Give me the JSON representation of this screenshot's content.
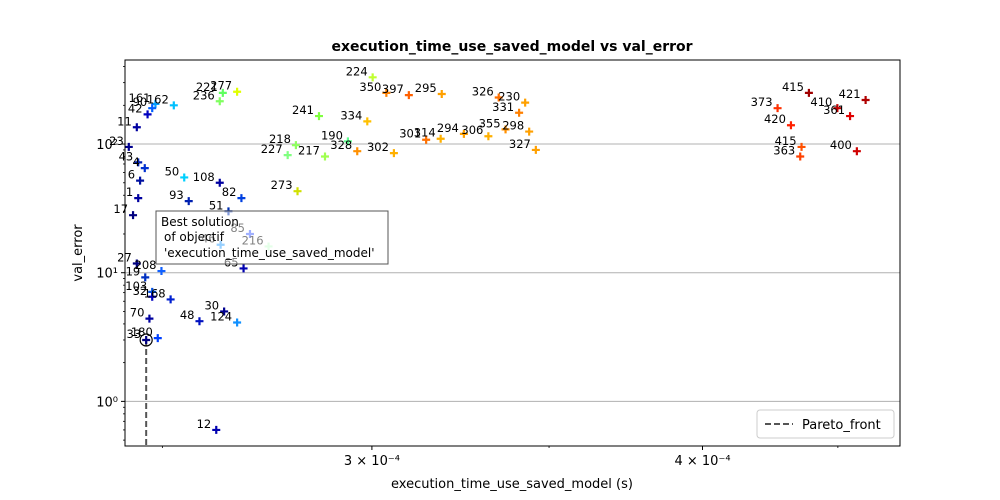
{
  "chart_data": {
    "type": "scatter",
    "title": "execution_time_use_saved_model vs val_error",
    "xlabel": "execution_time_use_saved_model (s)",
    "ylabel": "val_error",
    "xscale": "log",
    "yscale": "log",
    "xlim": [
      0.000242,
      0.000475
    ],
    "ylim": [
      0.45,
      450
    ],
    "x_ticks": [
      {
        "value": 0.0003,
        "label": "3 × 10⁻⁴"
      },
      {
        "value": 0.0004,
        "label": "4 × 10⁻⁴"
      }
    ],
    "y_ticks": [
      {
        "value": 1,
        "label": "10⁰"
      },
      {
        "value": 10,
        "label": "10¹"
      },
      {
        "value": 100,
        "label": "10²"
      }
    ],
    "grid": "horizontal",
    "legend": {
      "position": "bottom-right",
      "entries": [
        {
          "label": "Pareto_front",
          "style": "dashed",
          "color": "#555555"
        }
      ]
    },
    "annotation": {
      "lines": [
        "Best solution",
        "of objectif",
        "'execution_time_use_saved_model'"
      ]
    },
    "best_point": {
      "x": 0.0002465,
      "y": 3.0,
      "label": "33"
    },
    "pareto_front": [
      [
        0.0002465,
        3.0
      ],
      [
        0.0002465,
        0.45
      ]
    ],
    "points": [
      {
        "label": "12",
        "x": 0.000262,
        "y": 0.6,
        "color": "#0000b0"
      },
      {
        "label": "33",
        "x": 0.0002465,
        "y": 3.0,
        "color": "#000080"
      },
      {
        "label": "180",
        "x": 0.000249,
        "y": 3.1,
        "color": "#0040ff"
      },
      {
        "label": "70",
        "x": 0.0002472,
        "y": 4.4,
        "color": "#0000a0"
      },
      {
        "label": "48",
        "x": 0.0002582,
        "y": 4.2,
        "color": "#0010c0"
      },
      {
        "label": "30",
        "x": 0.0002638,
        "y": 5.0,
        "color": "#000090"
      },
      {
        "label": "124",
        "x": 0.0002668,
        "y": 4.1,
        "color": "#1090ff"
      },
      {
        "label": "103",
        "x": 0.0002478,
        "y": 7.1,
        "color": "#0050e0"
      },
      {
        "label": "32",
        "x": 0.0002478,
        "y": 6.5,
        "color": "#0000c0"
      },
      {
        "label": "168",
        "x": 0.0002518,
        "y": 6.2,
        "color": "#0020d0"
      },
      {
        "label": "27",
        "x": 0.0002445,
        "y": 11.8,
        "color": "#000080"
      },
      {
        "label": "19",
        "x": 0.0002463,
        "y": 9.2,
        "color": "#0030c0"
      },
      {
        "label": "208",
        "x": 0.0002498,
        "y": 10.3,
        "color": "#1060ff"
      },
      {
        "label": "65",
        "x": 0.0002683,
        "y": 10.8,
        "color": "#0000b0"
      },
      {
        "label": "216",
        "x": 0.0002742,
        "y": 16.0,
        "color": "#c8ffd0"
      },
      {
        "label": "46",
        "x": 0.000263,
        "y": 16.5,
        "color": "#30a0ff"
      },
      {
        "label": "85",
        "x": 0.0002698,
        "y": 20.0,
        "color": "#4060ff"
      },
      {
        "label": "17",
        "x": 0.0002437,
        "y": 28.0,
        "color": "#000080"
      },
      {
        "label": "51",
        "x": 0.0002648,
        "y": 30.0,
        "color": "#0030b0"
      },
      {
        "label": "93",
        "x": 0.0002558,
        "y": 36.0,
        "color": "#0020b0"
      },
      {
        "label": "82",
        "x": 0.0002678,
        "y": 38.0,
        "color": "#0040e0"
      },
      {
        "label": "108",
        "x": 0.0002628,
        "y": 50.0,
        "color": "#0000a0"
      },
      {
        "label": "50",
        "x": 0.0002548,
        "y": 55.0,
        "color": "#00d0ff"
      },
      {
        "label": "273",
        "x": 0.0002812,
        "y": 43.0,
        "color": "#d0e000"
      },
      {
        "label": "327",
        "x": 0.000346,
        "y": 90.0,
        "color": "#ffa000"
      },
      {
        "label": "328",
        "x": 0.0002962,
        "y": 88.0,
        "color": "#ff9000"
      },
      {
        "label": "302",
        "x": 0.0003058,
        "y": 85.0,
        "color": "#ffb000"
      },
      {
        "label": "217",
        "x": 0.000288,
        "y": 80.0,
        "color": "#a0ff50"
      },
      {
        "label": "227",
        "x": 0.0002788,
        "y": 82.0,
        "color": "#80ff80"
      },
      {
        "label": "190",
        "x": 0.0002938,
        "y": 105.0,
        "color": "#60ff90"
      },
      {
        "label": "218",
        "x": 0.0002808,
        "y": 98.0,
        "color": "#90ff60"
      },
      {
        "label": "334",
        "x": 0.0002988,
        "y": 150.0,
        "color": "#ffc000"
      },
      {
        "label": "224",
        "x": 0.0003002,
        "y": 330.0,
        "color": "#c0ff30"
      },
      {
        "label": "350",
        "x": 0.0003038,
        "y": 250.0,
        "color": "#ff8000"
      },
      {
        "label": "397",
        "x": 0.0003098,
        "y": 240.0,
        "color": "#ff6000"
      },
      {
        "label": "295",
        "x": 0.0003188,
        "y": 245.0,
        "color": "#ffa000"
      },
      {
        "label": "326",
        "x": 0.000335,
        "y": 230.0,
        "color": "#ff7000"
      },
      {
        "label": "230",
        "x": 0.0003428,
        "y": 210.0,
        "color": "#ffa000"
      },
      {
        "label": "331",
        "x": 0.000341,
        "y": 175.0,
        "color": "#ff8000"
      },
      {
        "label": "306",
        "x": 0.000332,
        "y": 115.0,
        "color": "#ffb000"
      },
      {
        "label": "355",
        "x": 0.000337,
        "y": 130.0,
        "color": "#ff9000"
      },
      {
        "label": "298",
        "x": 0.000344,
        "y": 125.0,
        "color": "#ffa000"
      },
      {
        "label": "301",
        "x": 0.0003145,
        "y": 108.0,
        "color": "#ff7000"
      },
      {
        "label": "314",
        "x": 0.0003185,
        "y": 110.0,
        "color": "#ffb000"
      },
      {
        "label": "294",
        "x": 0.000325,
        "y": 120.0,
        "color": "#ffa000"
      },
      {
        "label": "241",
        "x": 0.0002865,
        "y": 165.0,
        "color": "#80ff40"
      },
      {
        "label": "162",
        "x": 0.0002525,
        "y": 200.0,
        "color": "#00c0ff"
      },
      {
        "label": "161",
        "x": 0.0002485,
        "y": 205.0,
        "color": "#00a0ff"
      },
      {
        "label": "221",
        "x": 0.0002635,
        "y": 250.0,
        "color": "#60ff60"
      },
      {
        "label": "277",
        "x": 0.0002668,
        "y": 255.0,
        "color": "#e0ff00"
      },
      {
        "label": "236",
        "x": 0.0002628,
        "y": 215.0,
        "color": "#80ff60"
      },
      {
        "label": "42",
        "x": 0.0002468,
        "y": 170.0,
        "color": "#0000c0"
      },
      {
        "label": "90",
        "x": 0.0002478,
        "y": 190.0,
        "color": "#0060ff"
      },
      {
        "label": "11",
        "x": 0.0002445,
        "y": 135.0,
        "color": "#0000a0"
      },
      {
        "label": "23",
        "x": 0.0002428,
        "y": 95.0,
        "color": "#000090"
      },
      {
        "label": "43",
        "x": 0.0002448,
        "y": 72.0,
        "color": "#0020b0"
      },
      {
        "label": "4",
        "x": 0.0002462,
        "y": 65.0,
        "color": "#0030d0"
      },
      {
        "label": "6",
        "x": 0.0002452,
        "y": 52.0,
        "color": "#0010a0"
      },
      {
        "label": "1",
        "x": 0.0002448,
        "y": 38.0,
        "color": "#0000a0"
      },
      {
        "label": "400",
        "x": 0.0004575,
        "y": 88.0,
        "color": "#d00000"
      },
      {
        "label": "421",
        "x": 0.000461,
        "y": 220.0,
        "color": "#b00000"
      },
      {
        "label": "415",
        "x": 0.0004388,
        "y": 250.0,
        "color": "#a00000"
      },
      {
        "label": "361",
        "x": 0.0004548,
        "y": 165.0,
        "color": "#e00000"
      },
      {
        "label": "363",
        "x": 0.0004355,
        "y": 80.0,
        "color": "#ff4000"
      },
      {
        "label": "410",
        "x": 0.0004498,
        "y": 190.0,
        "color": "#c00000"
      },
      {
        "label": "373",
        "x": 0.000427,
        "y": 190.0,
        "color": "#ff3000"
      },
      {
        "label": "420",
        "x": 0.000432,
        "y": 140.0,
        "color": "#ff2000"
      },
      {
        "label": "415",
        "x": 0.000436,
        "y": 95.0,
        "color": "#ff5000"
      }
    ]
  }
}
